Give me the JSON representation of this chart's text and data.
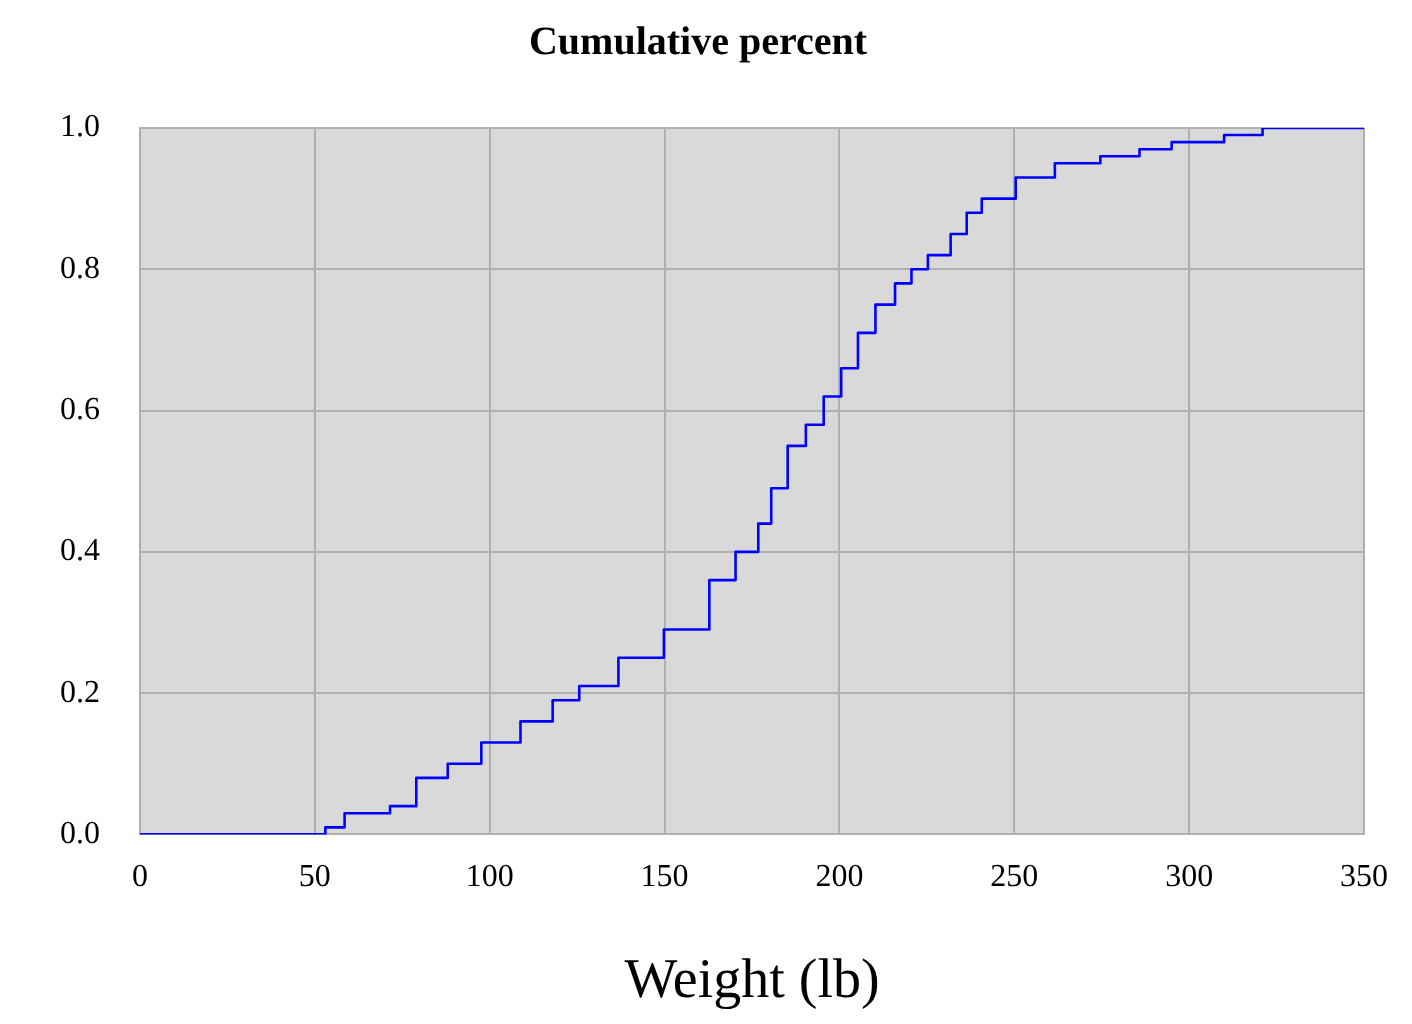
{
  "chart_data": {
    "type": "step",
    "title": "Cumulative percent",
    "xlabel": "Weight (lb)",
    "xlim": [
      0,
      350
    ],
    "xticks": [
      0,
      50,
      100,
      150,
      200,
      250,
      300,
      350
    ],
    "ylim": [
      0,
      1
    ],
    "yticks": [
      {
        "value": 0,
        "label": "0.0"
      },
      {
        "value": 0.2,
        "label": "0.2"
      },
      {
        "value": 0.4,
        "label": "0.4"
      },
      {
        "value": 0.6,
        "label": "0.6"
      },
      {
        "value": 0.8,
        "label": "0.8"
      },
      {
        "value": 1,
        "label": "1.0"
      }
    ],
    "grid": true,
    "legend": false,
    "series": [
      {
        "color": "#0000ff",
        "x": [
          0,
          53,
          58.5,
          71.5,
          79,
          88,
          97.6,
          108.8,
          118,
          125.6,
          136.8,
          149.8,
          162.8,
          170.3,
          176.8,
          180.5,
          185.2,
          190.4,
          195.5,
          200.5,
          205.3,
          210.3,
          215.9,
          220.6,
          225.3,
          231.8,
          236.4,
          240.7,
          250.4,
          261.6,
          265.3,
          274.6,
          285.8,
          295,
          310,
          312,
          321,
          334,
          350
        ],
        "values": [
          0,
          0,
          0.01,
          0.03,
          0.04,
          0.08,
          0.1,
          0.13,
          0.16,
          0.19,
          0.21,
          0.25,
          0.29,
          0.36,
          0.4,
          0.44,
          0.49,
          0.55,
          0.58,
          0.62,
          0.66,
          0.71,
          0.75,
          0.78,
          0.8,
          0.82,
          0.85,
          0.88,
          0.9,
          0.93,
          0.95,
          0.95,
          0.96,
          0.97,
          0.98,
          0.99,
          0.99,
          1,
          1
        ]
      }
    ]
  }
}
